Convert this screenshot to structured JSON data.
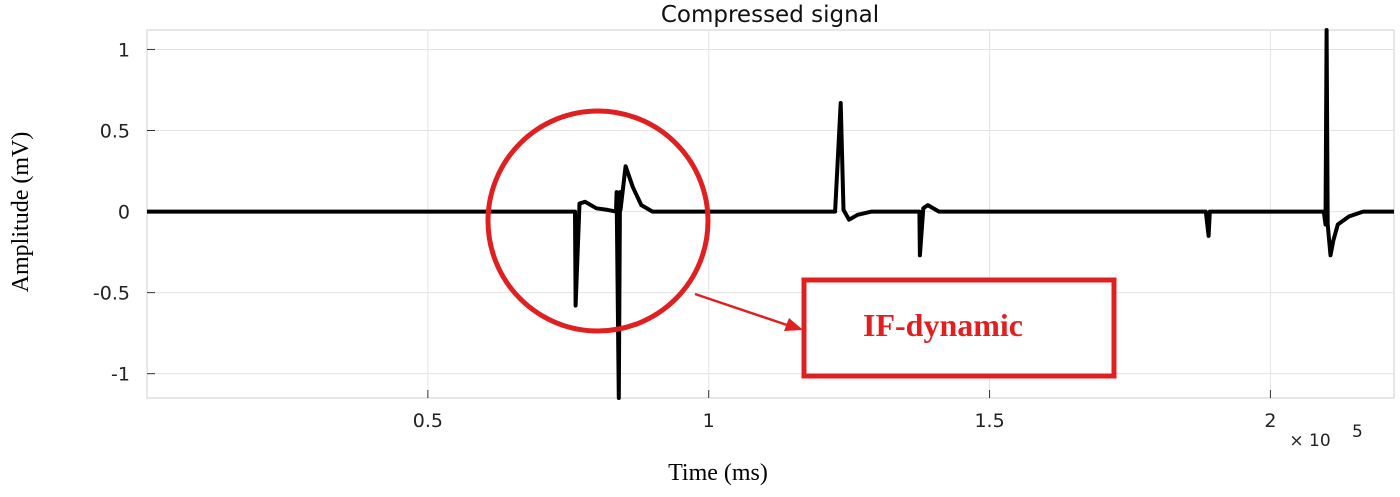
{
  "chart_data": {
    "type": "line",
    "title": "Compressed signal",
    "xlabel": "Time (ms)",
    "ylabel": "Amplitude (mV)",
    "xlim": [
      0,
      222000
    ],
    "ylim": [
      -1.15,
      1.12
    ],
    "x_ticks": [
      50000,
      100000,
      150000,
      200000
    ],
    "x_tick_labels": [
      "0.5",
      "1",
      "1.5",
      "2"
    ],
    "x_exponent_label": "× 10",
    "x_exponent_power": "5",
    "y_ticks": [
      1,
      0.5,
      0,
      -0.5,
      -1
    ],
    "y_tick_labels": [
      "1",
      "0.5",
      "0",
      "-0.5",
      "-1"
    ],
    "grid": true,
    "series": [
      {
        "color": "#000000",
        "x": [
          0,
          75000,
          76200,
          76300,
          77000,
          78000,
          80000,
          82000,
          83500,
          83600,
          84000,
          84200,
          84300,
          85200,
          86500,
          88000,
          90000,
          95000,
          122500,
          123500,
          124000,
          125000,
          126500,
          129000,
          137500,
          137600,
          138200,
          139000,
          141000,
          188500,
          189000,
          189200,
          190000,
          209500,
          209800,
          210000,
          210200,
          210700,
          211200,
          212000,
          214000,
          216500,
          219000,
          222000
        ],
        "y": [
          0,
          0,
          0,
          -0.58,
          0.05,
          0.06,
          0.02,
          0.01,
          0,
          0.12,
          -1.15,
          0.12,
          0.01,
          0.28,
          0.15,
          0.04,
          0,
          0,
          0,
          0.67,
          0.01,
          -0.05,
          -0.02,
          0,
          0,
          -0.27,
          0.02,
          0.04,
          0,
          0,
          -0.15,
          0,
          0,
          0,
          -0.08,
          1.12,
          -0.08,
          -0.27,
          -0.18,
          -0.08,
          -0.03,
          0,
          0,
          0
        ]
      }
    ],
    "annotation": {
      "label": "IF-dynamic",
      "color": "#e02020"
    }
  }
}
